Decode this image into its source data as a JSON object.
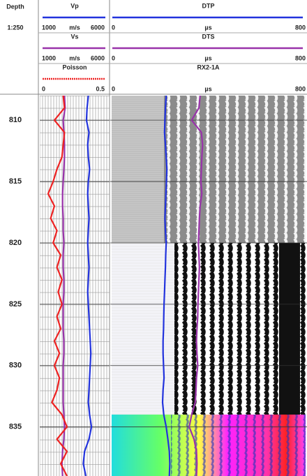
{
  "header": {
    "depth_title": "Depth",
    "scale": "1:250"
  },
  "chart_data": [
    {
      "type": "line",
      "y": [
        808,
        809,
        810,
        811,
        812,
        813,
        814,
        815,
        816,
        817,
        818,
        819,
        820,
        821,
        822,
        823,
        824,
        825,
        826,
        827,
        828,
        829,
        830,
        831,
        832,
        833,
        834,
        835,
        836,
        837,
        838,
        839
      ],
      "ylim": [
        808,
        839
      ],
      "yticks": [
        810,
        815,
        820,
        825,
        830,
        835
      ],
      "grid": true,
      "series": [
        {
          "name": "Vp",
          "color": "#2233dd",
          "xlim": [
            1000,
            6000
          ],
          "xticks": [
            1000,
            6000
          ],
          "unit": "m/s",
          "line_style": "solid",
          "values": [
            4700,
            4600,
            4550,
            4750,
            4650,
            4700,
            4800,
            4700,
            4650,
            4700,
            4750,
            4700,
            4650,
            4700,
            4750,
            4700,
            4650,
            4700,
            4750,
            4800,
            4850,
            4900,
            4850,
            4800,
            4750,
            4700,
            4800,
            4950,
            4750,
            4400,
            4300,
            4500
          ]
        },
        {
          "name": "Vs",
          "color": "#9933aa",
          "xlim": [
            1000,
            6000
          ],
          "xticks": [
            1000,
            6000
          ],
          "unit": "m/s",
          "line_style": "solid",
          "values": [
            2800,
            2850,
            2700,
            2750,
            2800,
            2800,
            2750,
            2700,
            2650,
            2650,
            2700,
            2700,
            2750,
            2700,
            2700,
            2750,
            2750,
            2700,
            2700,
            2700,
            2750,
            2750,
            2700,
            2700,
            2700,
            2700,
            2750,
            2800,
            2750,
            2650,
            2600,
            2650
          ]
        },
        {
          "name": "Poisson",
          "color": "#ee2222",
          "xlim": [
            0,
            0.5
          ],
          "xticks": [
            0,
            0.5
          ],
          "line_style": "dotted",
          "values": [
            0.17,
            0.18,
            0.1,
            0.18,
            0.17,
            0.16,
            0.12,
            0.09,
            0.05,
            0.1,
            0.07,
            0.12,
            0.09,
            0.15,
            0.12,
            0.16,
            0.13,
            0.16,
            0.12,
            0.15,
            0.1,
            0.14,
            0.1,
            0.14,
            0.12,
            0.08,
            0.16,
            0.2,
            0.12,
            0.2,
            0.15,
            0.2
          ]
        }
      ]
    },
    {
      "type": "line",
      "y": [
        808,
        809,
        810,
        811,
        812,
        813,
        814,
        815,
        816,
        817,
        818,
        819,
        820,
        821,
        822,
        823,
        824,
        825,
        826,
        827,
        828,
        829,
        830,
        831,
        832,
        833,
        834,
        835,
        836,
        837,
        838,
        839
      ],
      "ylim": [
        808,
        839
      ],
      "yticks": [
        810,
        815,
        820,
        825,
        830,
        835
      ],
      "grid": true,
      "series": [
        {
          "name": "DTP",
          "color": "#2233dd",
          "xlim": [
            0,
            800
          ],
          "xticks": [
            0,
            800
          ],
          "unit": "µs",
          "line_style": "solid",
          "values": [
            225,
            222,
            220,
            218,
            222,
            225,
            228,
            226,
            224,
            222,
            220,
            222,
            225,
            223,
            222,
            220,
            218,
            216,
            215,
            214,
            212,
            212,
            214,
            216,
            212,
            210,
            215,
            225,
            232,
            238,
            240,
            238
          ]
        },
        {
          "name": "DTS",
          "color": "#9933aa",
          "xlim": [
            0,
            800
          ],
          "xticks": [
            0,
            800
          ],
          "unit": "µs",
          "line_style": "solid",
          "values": [
            365,
            360,
            330,
            370,
            375,
            372,
            370,
            368,
            372,
            365,
            362,
            360,
            358,
            360,
            362,
            360,
            358,
            356,
            355,
            352,
            350,
            352,
            355,
            350,
            348,
            345,
            330,
            320,
            340,
            350,
            352,
            350
          ]
        }
      ],
      "image": {
        "name": "RX2-1A",
        "xlim": [
          0,
          800
        ],
        "xticks": [
          0,
          800
        ],
        "unit": "µs"
      }
    }
  ]
}
